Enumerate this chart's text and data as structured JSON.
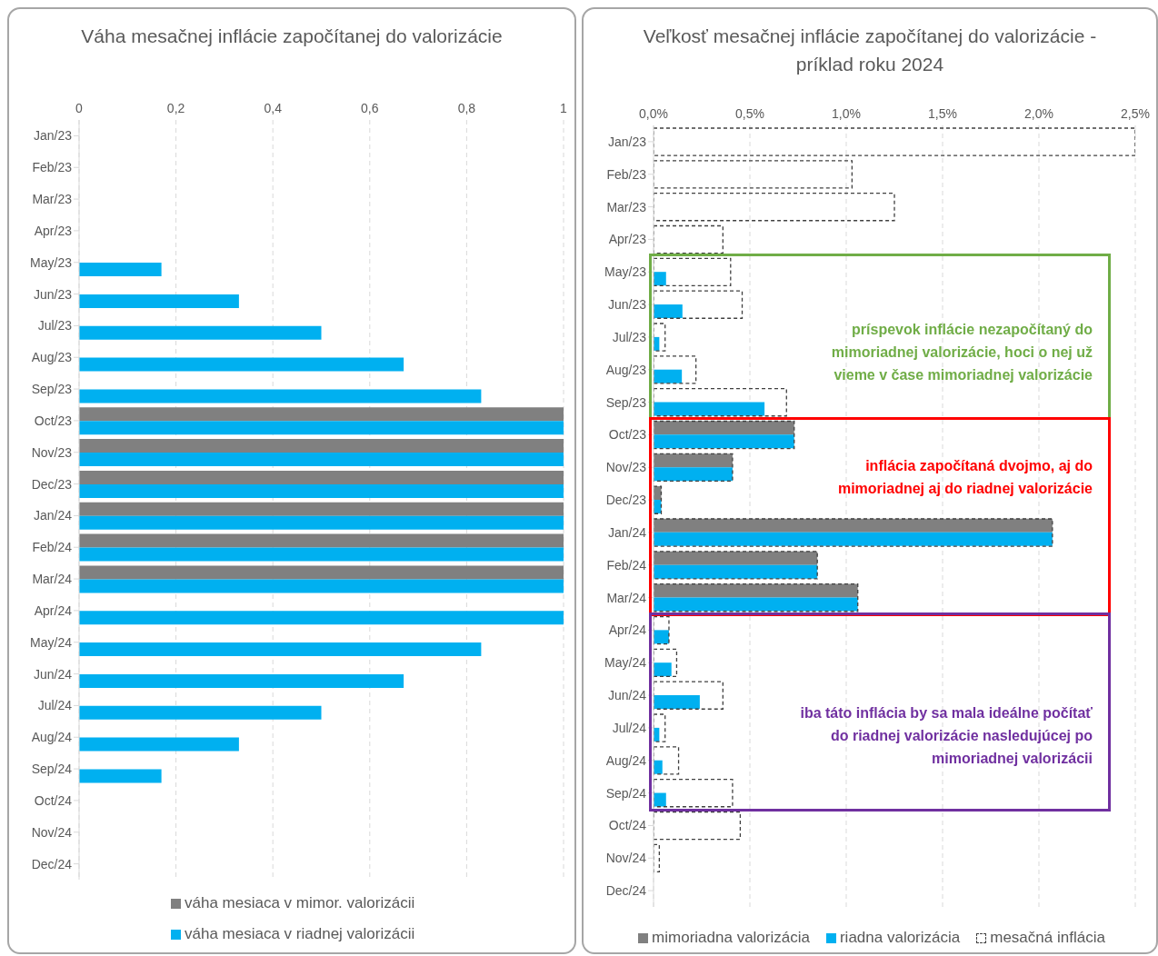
{
  "chart_data": [
    {
      "type": "bar",
      "orientation": "horizontal",
      "title": "Váha mesačnej inflácie započítanej do valorizácie",
      "categories": [
        "Jan/23",
        "Feb/23",
        "Mar/23",
        "Apr/23",
        "May/23",
        "Jun/23",
        "Jul/23",
        "Aug/23",
        "Sep/23",
        "Oct/23",
        "Nov/23",
        "Dec/23",
        "Jan/24",
        "Feb/24",
        "Mar/24",
        "Apr/24",
        "May/24",
        "Jun/24",
        "Jul/24",
        "Aug/24",
        "Sep/24",
        "Oct/24",
        "Nov/24",
        "Dec/24"
      ],
      "series": [
        {
          "name": "váha mesiaca v mimor. valorizácii",
          "color": "#808080",
          "values": [
            null,
            null,
            null,
            null,
            null,
            null,
            null,
            null,
            null,
            1,
            1,
            1,
            1,
            1,
            1,
            null,
            null,
            null,
            null,
            null,
            null,
            null,
            null,
            null
          ]
        },
        {
          "name": "váha mesiaca v riadnej valorizácii",
          "color": "#00b0f0",
          "values": [
            null,
            null,
            null,
            null,
            0.17,
            0.33,
            0.5,
            0.67,
            0.83,
            1,
            1,
            1,
            1,
            1,
            1,
            1,
            0.83,
            0.67,
            0.5,
            0.33,
            0.17,
            null,
            null,
            null
          ]
        }
      ],
      "xlim": [
        0,
        1
      ],
      "xticks": [
        0,
        {
          "value": 0.2,
          "label": "0,2"
        },
        {
          "value": 0.4,
          "label": "0,4"
        },
        {
          "value": 0.6,
          "label": "0,6"
        },
        {
          "value": 0.8,
          "label": "0,8"
        },
        1
      ],
      "grid": "x",
      "legend": "bottom"
    },
    {
      "type": "bar",
      "orientation": "horizontal",
      "title": "Veľkosť mesačnej inflácie započítanej do valorizácie - príklad roku 2024",
      "categories": [
        "Jan/23",
        "Feb/23",
        "Mar/23",
        "Apr/23",
        "May/23",
        "Jun/23",
        "Jul/23",
        "Aug/23",
        "Sep/23",
        "Oct/23",
        "Nov/23",
        "Dec/23",
        "Jan/24",
        "Feb/24",
        "Mar/24",
        "Apr/24",
        "May/24",
        "Jun/24",
        "Jul/24",
        "Aug/24",
        "Sep/24",
        "Oct/24",
        "Nov/24",
        "Dec/24"
      ],
      "series": [
        {
          "name": "mimoriadna valorizácia",
          "color": "#808080",
          "values": [
            null,
            null,
            null,
            null,
            null,
            null,
            null,
            null,
            null,
            0.73,
            0.41,
            0.04,
            2.07,
            0.85,
            1.06,
            null,
            null,
            null,
            null,
            null,
            null,
            null,
            null,
            null
          ]
        },
        {
          "name": "riadna valorizácia",
          "color": "#00b0f0",
          "values": [
            null,
            null,
            null,
            null,
            0.065,
            0.15,
            0.03,
            0.147,
            0.576,
            0.73,
            0.41,
            0.04,
            2.07,
            0.85,
            1.06,
            0.08,
            0.093,
            0.24,
            0.03,
            0.046,
            0.065,
            null,
            null,
            null
          ]
        },
        {
          "name": "mesačná inflácia",
          "color": "#404040",
          "line_style": "dashed",
          "values": [
            2.5,
            1.03,
            1.25,
            0.36,
            0.4,
            0.46,
            0.06,
            0.22,
            0.69,
            0.73,
            0.41,
            0.04,
            2.07,
            0.85,
            1.06,
            0.08,
            0.12,
            0.36,
            0.06,
            0.13,
            0.41,
            0.45,
            0.03,
            null
          ]
        }
      ],
      "xlim": [
        0,
        2.5
      ],
      "xticks": [
        {
          "value": 0,
          "label": "0,0%"
        },
        {
          "value": 0.5,
          "label": "0,5%"
        },
        {
          "value": 1,
          "label": "1,0%"
        },
        {
          "value": 1.5,
          "label": "1,5%"
        },
        {
          "value": 2,
          "label": "2,0%"
        },
        {
          "value": 2.5,
          "label": "2,5%"
        }
      ],
      "grid": "x",
      "legend": "bottom",
      "annotations": [
        "príspevok inflácie nezapočítaný do mimoriadnej valorizácie, hoci o nej už vieme v čase mimoriadnej valorizácie",
        "inflácia započítaná dvojmo, aj do mimoriadnej aj do riadnej valorizácie",
        "iba táto inflácia by sa mala ideálne počítať do riadnej valorizácie nasledujúcej po mimoriadnej valorizácii"
      ]
    }
  ]
}
